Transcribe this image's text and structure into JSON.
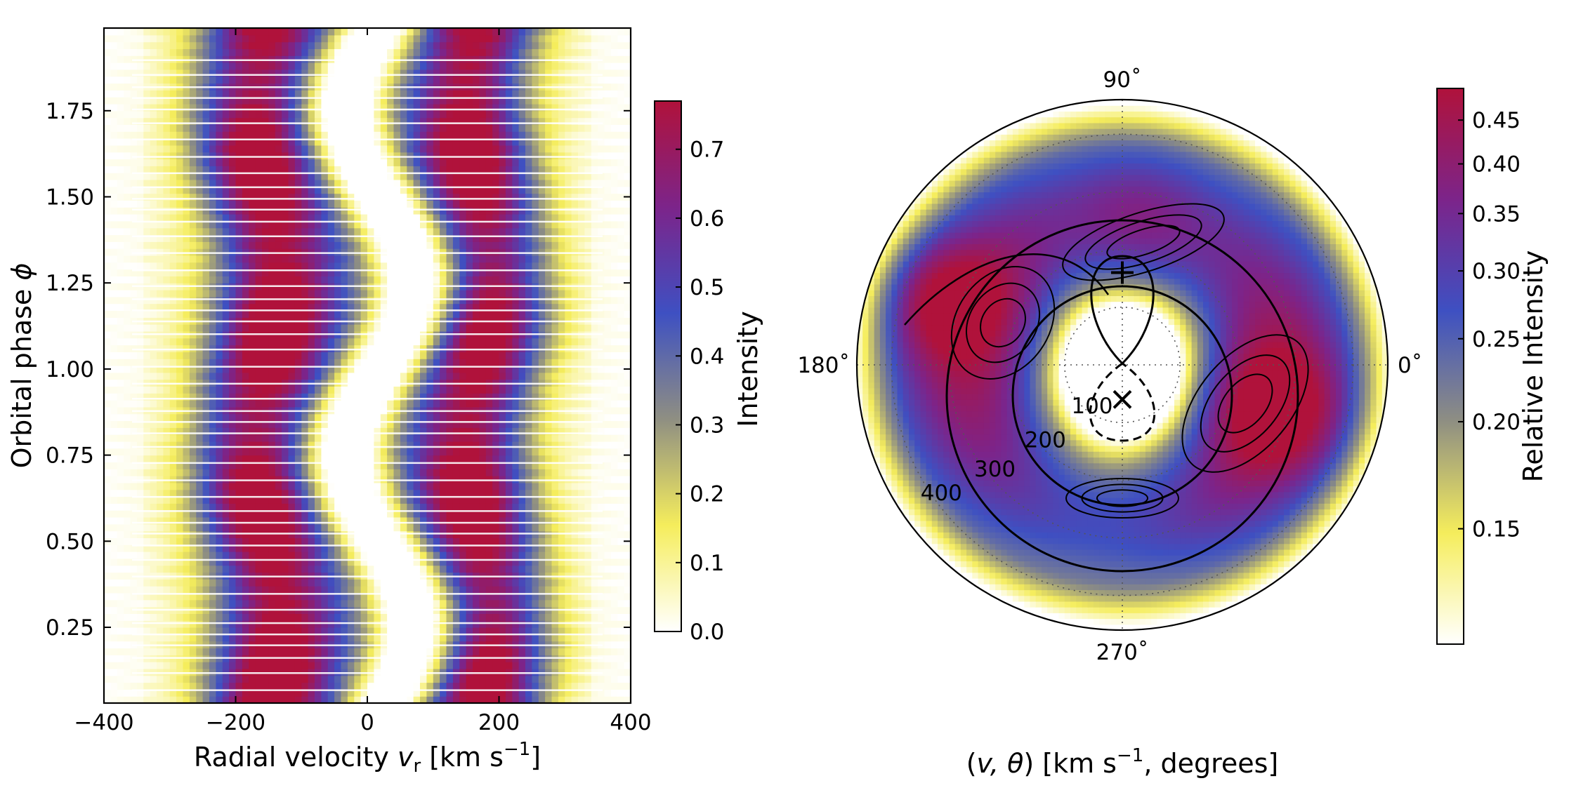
{
  "chart_data": [
    {
      "type": "heatmap",
      "xlabel_prefix": "Radial velocity ",
      "xlabel_var": "v",
      "xlabel_sub": "r",
      "xlabel_unit_open": " [km s",
      "xlabel_unit_exp": "−1",
      "xlabel_unit_close": "]",
      "ylabel_prefix": "Orbital phase ",
      "ylabel_var": "ϕ",
      "xlim": [
        -400,
        400
      ],
      "ylim": [
        0.03,
        1.99
      ],
      "x_ticks": [
        -400,
        -200,
        0,
        200,
        400
      ],
      "x_ticklabels": [
        "−400",
        "−200",
        "0",
        "200",
        "400"
      ],
      "y_ticks": [
        0.25,
        0.5,
        0.75,
        1.0,
        1.25,
        1.5,
        1.75
      ],
      "y_ticklabels": [
        "0.25",
        "0.50",
        "0.75",
        "1.00",
        "1.25",
        "1.50",
        "1.75"
      ],
      "emission_peaks_kms": [
        -160,
        175
      ],
      "central_absorption_kms": 20,
      "intensity_range": [
        0.0,
        0.77
      ],
      "colorbar": {
        "label": "Intensity",
        "range": [
          0.0,
          0.77
        ],
        "ticks": [
          0.0,
          0.1,
          0.2,
          0.3,
          0.4,
          0.5,
          0.6,
          0.7
        ],
        "ticklabels": [
          "0.0",
          "0.1",
          "0.2",
          "0.3",
          "0.4",
          "0.5",
          "0.6",
          "0.7"
        ]
      }
    },
    {
      "type": "heatmap",
      "projection": "polar",
      "title_open": "(",
      "title_vars": "v, θ",
      "title_mid": ") [km s",
      "title_exp": "−1",
      "title_close": ", degrees]",
      "angle_labels": [
        {
          "deg": 90,
          "text": "90˚"
        },
        {
          "deg": 180,
          "text": "180˚"
        },
        {
          "deg": 0,
          "text": "0˚"
        },
        {
          "deg": 270,
          "text": "270˚"
        }
      ],
      "radial_labels": [
        "100",
        "200",
        "300",
        "400"
      ],
      "radial_ticks": [
        100,
        200,
        300,
        400
      ],
      "rmax": 460,
      "primary_marker": "+",
      "primary_velocity": [
        0,
        160
      ],
      "secondary_marker": "×",
      "secondary_velocity": [
        0,
        -60
      ],
      "colorbar": {
        "label": "Relative Intensity",
        "scale": "log",
        "range": [
          0.11,
          0.49
        ],
        "ticks": [
          0.15,
          0.2,
          0.25,
          0.3,
          0.35,
          0.4,
          0.45
        ],
        "ticklabels": [
          "0.15",
          "0.20",
          "0.25",
          "0.30",
          "0.35",
          "0.40",
          "0.45"
        ]
      }
    }
  ],
  "colors": {
    "colormap": [
      "#ffffff",
      "#f5ed5c",
      "#8f8f82",
      "#3e50c2",
      "#7c248a",
      "#b0123b"
    ],
    "axes": "#000000",
    "grid": "#555555",
    "contour": "#000000"
  }
}
